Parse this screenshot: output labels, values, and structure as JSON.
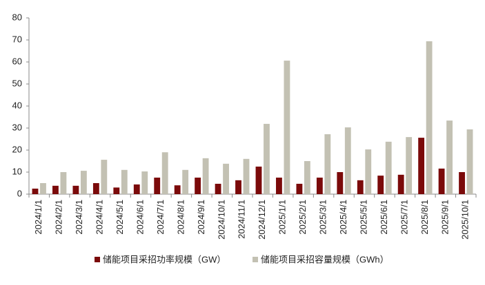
{
  "chart_data": {
    "type": "bar",
    "categories": [
      "2024/1/1",
      "2024/2/1",
      "2024/3/1",
      "2024/4/1",
      "2024/5/1",
      "2024/6/1",
      "2024/7/1",
      "2024/8/1",
      "2024/9/1",
      "2024/10/1",
      "2024/11/1",
      "2024/12/1",
      "2025/1/1",
      "2025/2/1",
      "2025/3/1",
      "2025/4/1",
      "2025/5/1",
      "2025/6/1",
      "2025/7/1",
      "2025/8/1",
      "2025/9/1",
      "2025/10/1"
    ],
    "series": [
      {
        "name": "储能项目采招功率规模（GW）",
        "color": "#7b0a0a",
        "values": [
          2.5,
          3.8,
          3.8,
          5,
          3,
          4.4,
          7.5,
          4,
          7.5,
          4.7,
          6.3,
          12.5,
          7.5,
          4.7,
          7.5,
          10,
          6.3,
          8.4,
          8.8,
          25.6,
          11.6,
          10
        ]
      },
      {
        "name": "储能项目采招容量规模（GWh）",
        "color": "#c3c1b3",
        "values": [
          5,
          10,
          10.6,
          15.6,
          11,
          10.3,
          19,
          11,
          16.3,
          13.8,
          16,
          31.9,
          60.6,
          15,
          27.2,
          30.3,
          20.3,
          23.8,
          25.9,
          69.4,
          33.4,
          29.4
        ]
      }
    ],
    "ylim": [
      0,
      80
    ],
    "yticks": [
      0,
      10,
      20,
      30,
      40,
      50,
      60,
      70,
      80
    ],
    "grid": false,
    "legend": "bottom"
  }
}
